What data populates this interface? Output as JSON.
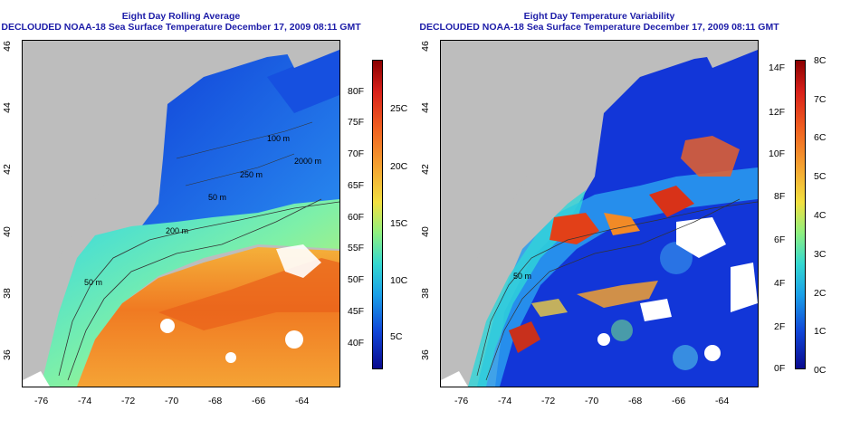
{
  "left_panel": {
    "title_line1": "Eight Day Rolling Average",
    "title_line2": "DECLOUDED NOAA-18 Sea Surface Temperature December 17, 2009 08:11 GMT",
    "x_ticks": [
      "-76",
      "-74",
      "-72",
      "-70",
      "-68",
      "-66",
      "-64"
    ],
    "y_ticks": [
      "36",
      "38",
      "40",
      "42",
      "44",
      "46"
    ],
    "contour_labels": [
      "100 m",
      "2000 m",
      "250 m",
      "200 m",
      "50 m",
      "50 m"
    ],
    "colorbar_fahrenheit": [
      "80F",
      "75F",
      "70F",
      "65F",
      "60F",
      "55F",
      "50F",
      "45F",
      "40F"
    ],
    "colorbar_celsius": [
      "25C",
      "20C",
      "15C",
      "10C",
      "5C"
    ]
  },
  "right_panel": {
    "title_line1": "Eight Day Temperature Variability",
    "title_line2": "DECLOUDED NOAA-18 Sea Surface Temperature December 17, 2009 08:11 GMT",
    "x_ticks": [
      "-76",
      "-74",
      "-72",
      "-70",
      "-68",
      "-66",
      "-64"
    ],
    "y_ticks": [
      "36",
      "38",
      "40",
      "42",
      "44",
      "46"
    ],
    "contour_labels": [
      "50 m"
    ],
    "colorbar_fahrenheit": [
      "14F",
      "12F",
      "10F",
      "8F",
      "6F",
      "4F",
      "2F",
      "0F"
    ],
    "colorbar_celsius": [
      "8C",
      "7C",
      "6C",
      "5C",
      "4C",
      "3C",
      "2C",
      "1C",
      "0C"
    ]
  },
  "colors": {
    "title": "#1c1ca8",
    "land": "#bdbdbd",
    "frame": "#000000"
  }
}
